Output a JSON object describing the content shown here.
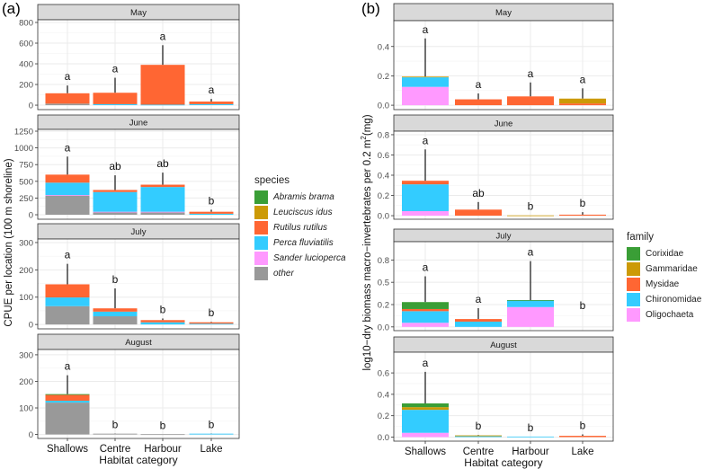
{
  "panel_labels": [
    "(a)",
    "(b)"
  ],
  "chart_data": [
    {
      "type": "bar",
      "stacked": true,
      "panel": "(a)",
      "xlabel": "Habitat category",
      "ylabel": "CPUE per location (100 m shoreline)",
      "categories": [
        "Shallows",
        "Centre",
        "Harbour",
        "Lake"
      ],
      "legend_title": "species",
      "legend_placement": "right",
      "legend": [
        {
          "name": "Abramis brama",
          "color": "#3a9e36"
        },
        {
          "name": "Leuciscus idus",
          "color": "#cc9a06"
        },
        {
          "name": "Rutilus rutilus",
          "color": "#ff6633"
        },
        {
          "name": "Perca fluviatilis",
          "color": "#33ccff"
        },
        {
          "name": "Sander lucioperca",
          "color": "#ff99ff"
        },
        {
          "name": "other",
          "color": "#999999"
        }
      ],
      "facets": [
        {
          "name": "May",
          "ylim": [
            -43,
            826
          ],
          "ticks": [
            [
              0,
              "0"
            ],
            [
              200,
              "200"
            ],
            [
              400,
              "400"
            ],
            [
              600,
              "600"
            ],
            [
              800,
              "800"
            ]
          ],
          "bars": [
            {
              "stack": {
                "other": 15,
                "Rutilus rutilus": 100
              },
              "err": 190,
              "letter": "a"
            },
            {
              "stack": {
                "Perca fluviatilis": 10,
                "Rutilus rutilus": 110
              },
              "err": 265,
              "letter": "a"
            },
            {
              "stack": {
                "Perca fluviatilis": 5,
                "Rutilus rutilus": 385
              },
              "err": 580,
              "letter": "a"
            },
            {
              "stack": {
                "Perca fluviatilis": 10,
                "Rutilus rutilus": 25
              },
              "err": 60,
              "letter": "a"
            }
          ]
        },
        {
          "name": "June",
          "ylim": [
            -67,
            1277
          ],
          "ticks": [
            [
              0,
              "0"
            ],
            [
              250,
              "250"
            ],
            [
              500,
              "500"
            ],
            [
              750,
              "750"
            ],
            [
              1000,
              "1000"
            ],
            [
              1250,
              "1250"
            ]
          ],
          "bars": [
            {
              "stack": {
                "other": 290,
                "Sander lucioperca": 5,
                "Perca fluviatilis": 185,
                "Rutilus rutilus": 120
              },
              "err": 870,
              "letter": "a"
            },
            {
              "stack": {
                "other": 40,
                "Sander lucioperca": 5,
                "Perca fluviatilis": 295,
                "Rutilus rutilus": 30
              },
              "err": 590,
              "letter": "ab"
            },
            {
              "stack": {
                "other": 35,
                "Sander lucioperca": 10,
                "Perca fluviatilis": 370,
                "Rutilus rutilus": 35
              },
              "err": 630,
              "letter": "ab"
            },
            {
              "stack": {
                "Perca fluviatilis": 15,
                "Rutilus rutilus": 30
              },
              "err": 75,
              "letter": "b"
            }
          ]
        },
        {
          "name": "July",
          "ylim": [
            -16,
            313
          ],
          "ticks": [
            [
              0,
              "0"
            ],
            [
              100,
              "100"
            ],
            [
              200,
              "200"
            ],
            [
              300,
              "300"
            ]
          ],
          "bars": [
            {
              "stack": {
                "other": 67,
                "Perca fluviatilis": 32,
                "Rutilus rutilus": 48
              },
              "err": 222,
              "letter": "a"
            },
            {
              "stack": {
                "other": 30,
                "Perca fluviatilis": 17,
                "Rutilus rutilus": 12
              },
              "err": 132,
              "letter": "b"
            },
            {
              "stack": {
                "Perca fluviatilis": 8,
                "Rutilus rutilus": 8
              },
              "err": 22,
              "letter": "b"
            },
            {
              "stack": {
                "Perca fluviatilis": 3,
                "Rutilus rutilus": 5
              },
              "err": 10,
              "letter": "b"
            }
          ]
        },
        {
          "name": "August",
          "ylim": [
            -15,
            320
          ],
          "ticks": [
            [
              0,
              "0"
            ],
            [
              100,
              "100"
            ],
            [
              200,
              "200"
            ],
            [
              300,
              "300"
            ]
          ],
          "bars": [
            {
              "stack": {
                "other": 120,
                "Perca fluviatilis": 7,
                "Rutilus rutilus": 22,
                "Abramis brama": 3
              },
              "err": 223,
              "letter": "a"
            },
            {
              "stack": {
                "other": 3
              },
              "err": 4,
              "letter": "b"
            },
            {
              "stack": {
                "other": 1
              },
              "err": 1,
              "letter": "b"
            },
            {
              "stack": {
                "Perca fluviatilis": 3
              },
              "err": 4,
              "letter": "b"
            }
          ]
        }
      ]
    },
    {
      "type": "bar",
      "stacked": true,
      "panel": "(b)",
      "xlabel": "Habitat category",
      "ylabel": "log10−dry biomass macro−invertebrates per 0.2 m",
      "ylabel_sup": "2",
      "ylabel_post": "(mg)",
      "categories": [
        "Shallows",
        "Centre",
        "Harbour",
        "Lake"
      ],
      "legend_title": "family",
      "legend_placement": "right",
      "legend": [
        {
          "name": "Corixidae",
          "color": "#3a9e36"
        },
        {
          "name": "Gammaridae",
          "color": "#cc9a06"
        },
        {
          "name": "Mysidae",
          "color": "#ff6633"
        },
        {
          "name": "Chironomidae",
          "color": "#33ccff"
        },
        {
          "name": "Oligochaeta",
          "color": "#ff99ff"
        }
      ],
      "facets": [
        {
          "name": "May",
          "ylim": [
            -0.03,
            0.576
          ],
          "ticks": [
            [
              0,
              "0.0"
            ],
            [
              0.2,
              "0.2"
            ],
            [
              0.4,
              "0.4"
            ]
          ],
          "bars": [
            {
              "stack": {
                "Oligochaeta": 0.125,
                "Chironomidae": 0.065,
                "Gammaridae": 0.005
              },
              "err": 0.455,
              "letter": "a"
            },
            {
              "stack": {
                "Mysidae": 0.04
              },
              "err": 0.08,
              "letter": "a"
            },
            {
              "stack": {
                "Mysidae": 0.06
              },
              "err": 0.155,
              "letter": "a"
            },
            {
              "stack": {
                "Mysidae": 0.012,
                "Gammaridae": 0.033
              },
              "err": 0.115,
              "letter": "a"
            }
          ]
        },
        {
          "name": "June",
          "ylim": [
            -0.035,
            0.835
          ],
          "ticks": [
            [
              0,
              "0.0"
            ],
            [
              0.2,
              "0.2"
            ],
            [
              0.4,
              "0.4"
            ],
            [
              0.6,
              "0.6"
            ],
            [
              0.8,
              "0.8"
            ]
          ],
          "bars": [
            {
              "stack": {
                "Oligochaeta": 0.045,
                "Chironomidae": 0.265,
                "Mysidae": 0.035
              },
              "err": 0.655,
              "letter": "a"
            },
            {
              "stack": {
                "Mysidae": 0.06
              },
              "err": 0.135,
              "letter": "ab"
            },
            {
              "stack": {
                "Gammaridae": 0.003
              },
              "err": 0.003,
              "letter": "b"
            },
            {
              "stack": {
                "Mysidae": 0.01
              },
              "err": 0.035,
              "letter": "b"
            }
          ]
        },
        {
          "name": "July",
          "ylim": [
            -0.042,
            0.955
          ],
          "ticks": [
            [
              0,
              "0.0"
            ],
            [
              0.25,
              "0.2"
            ],
            [
              0.5,
              "0.5"
            ],
            [
              0.75,
              "0.8"
            ]
          ],
          "bars": [
            {
              "stack": {
                "Oligochaeta": 0.046,
                "Chironomidae": 0.13,
                "Mysidae": 0.024,
                "Corixidae": 0.078
              },
              "err": 0.567,
              "letter": "a"
            },
            {
              "stack": {
                "Chironomidae": 0.059,
                "Mysidae": 0.029
              },
              "err": 0.21,
              "letter": "a"
            },
            {
              "stack": {
                "Oligochaeta": 0.222,
                "Chironomidae": 0.075,
                "Corixidae": 0.003
              },
              "err": 0.737,
              "letter": "a"
            },
            {
              "stack": {},
              "err": null,
              "letter": "b"
            }
          ]
        },
        {
          "name": "August",
          "ylim": [
            -0.038,
            0.794
          ],
          "ticks": [
            [
              0,
              "0.0"
            ],
            [
              0.2,
              "0.2"
            ],
            [
              0.4,
              "0.4"
            ],
            [
              0.6,
              "0.6"
            ]
          ],
          "bars": [
            {
              "stack": {
                "Oligochaeta": 0.04,
                "Chironomidae": 0.215,
                "Gammaridae": 0.025,
                "Corixidae": 0.035
              },
              "err": 0.61,
              "letter": "a"
            },
            {
              "stack": {
                "Chironomidae": 0.008,
                "Gammaridae": 0.008
              },
              "err": 0.02,
              "letter": "b"
            },
            {
              "stack": {
                "Chironomidae": 0.005
              },
              "err": 0.005,
              "letter": "b"
            },
            {
              "stack": {
                "Mysidae": 0.012
              },
              "err": 0.025,
              "letter": "b"
            }
          ]
        }
      ]
    }
  ]
}
